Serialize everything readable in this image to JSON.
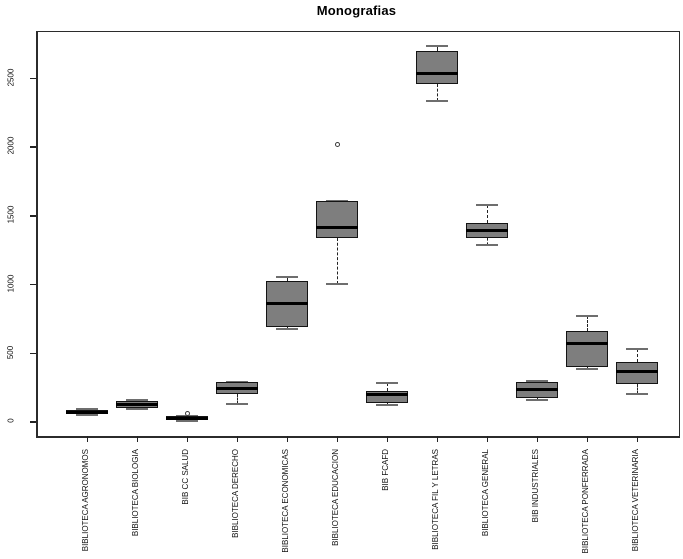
{
  "chart_data": {
    "type": "boxplot",
    "title": "Monografias",
    "xlabel": "",
    "ylabel": "",
    "yticks": [
      "0",
      "500",
      "1000",
      "1500",
      "2000",
      "2500"
    ],
    "ytick_values": [
      0,
      500,
      1000,
      1500,
      2000,
      2500
    ],
    "ylim": [
      -102,
      2835
    ],
    "grid": "off",
    "legend": "none",
    "box_fill_color": "#7e7e7e",
    "box_border_color": "#141414",
    "median_color": "#000000",
    "categories": [
      "BIBLIOTECA AGRONOMOS",
      "BIBLIOTECA BIOLOGIA",
      "BIB CC SALUD",
      "BIBLIOTECA DERECHO",
      "BIBLIOTECA ECONOMICAS",
      "BIBLIOTECA EDUCACION",
      "BIB FCAFD",
      "BIBLIOTECA FIL Y LETRAS",
      "BIBLIOTECA GENERAL",
      "BIB INDUSTRIALES",
      "BIBLIOTECA PONFERRADA",
      "BIBLIOTECA VETERINARIA"
    ],
    "boxes": [
      {
        "label": "BIBLIOTECA AGRONOMOS",
        "whisker_low": 48,
        "q1": 57,
        "median": 70,
        "q3": 90,
        "whisker_high": 97,
        "outliers": []
      },
      {
        "label": "BIBLIOTECA BIOLOGIA",
        "whisker_low": 95,
        "q1": 105,
        "median": 130,
        "q3": 150,
        "whisker_high": 160,
        "outliers": []
      },
      {
        "label": "BIB CC SALUD",
        "whisker_low": 8,
        "q1": 15,
        "median": 28,
        "q3": 43,
        "whisker_high": 47,
        "outliers": [
          65
        ]
      },
      {
        "label": "BIBLIOTECA DERECHO",
        "whisker_low": 128,
        "q1": 205,
        "median": 245,
        "q3": 288,
        "whisker_high": 293,
        "outliers": []
      },
      {
        "label": "BIBLIOTECA ECONOMICAS",
        "whisker_low": 675,
        "q1": 690,
        "median": 860,
        "q3": 1025,
        "whisker_high": 1055,
        "outliers": []
      },
      {
        "label": "BIBLIOTECA EDUCACION",
        "whisker_low": 1005,
        "q1": 1340,
        "median": 1415,
        "q3": 1608,
        "whisker_high": 1608,
        "outliers": [
          2020
        ]
      },
      {
        "label": "BIB FCAFD",
        "whisker_low": 120,
        "q1": 140,
        "median": 200,
        "q3": 225,
        "whisker_high": 283,
        "outliers": []
      },
      {
        "label": "BIBLIOTECA FIL Y LETRAS",
        "whisker_low": 2330,
        "q1": 2460,
        "median": 2530,
        "q3": 2700,
        "whisker_high": 2735,
        "outliers": []
      },
      {
        "label": "BIBLIOTECA GENERAL",
        "whisker_low": 1285,
        "q1": 1335,
        "median": 1393,
        "q3": 1445,
        "whisker_high": 1580,
        "outliers": []
      },
      {
        "label": "BIB INDUSTRIALES",
        "whisker_low": 163,
        "q1": 175,
        "median": 238,
        "q3": 290,
        "whisker_high": 297,
        "outliers": []
      },
      {
        "label": "BIBLIOTECA PONFERRADA",
        "whisker_low": 385,
        "q1": 400,
        "median": 570,
        "q3": 663,
        "whisker_high": 770,
        "outliers": []
      },
      {
        "label": "BIBLIOTECA VETERINARIA",
        "whisker_low": 200,
        "q1": 273,
        "median": 370,
        "q3": 433,
        "whisker_high": 530,
        "outliers": []
      }
    ]
  }
}
